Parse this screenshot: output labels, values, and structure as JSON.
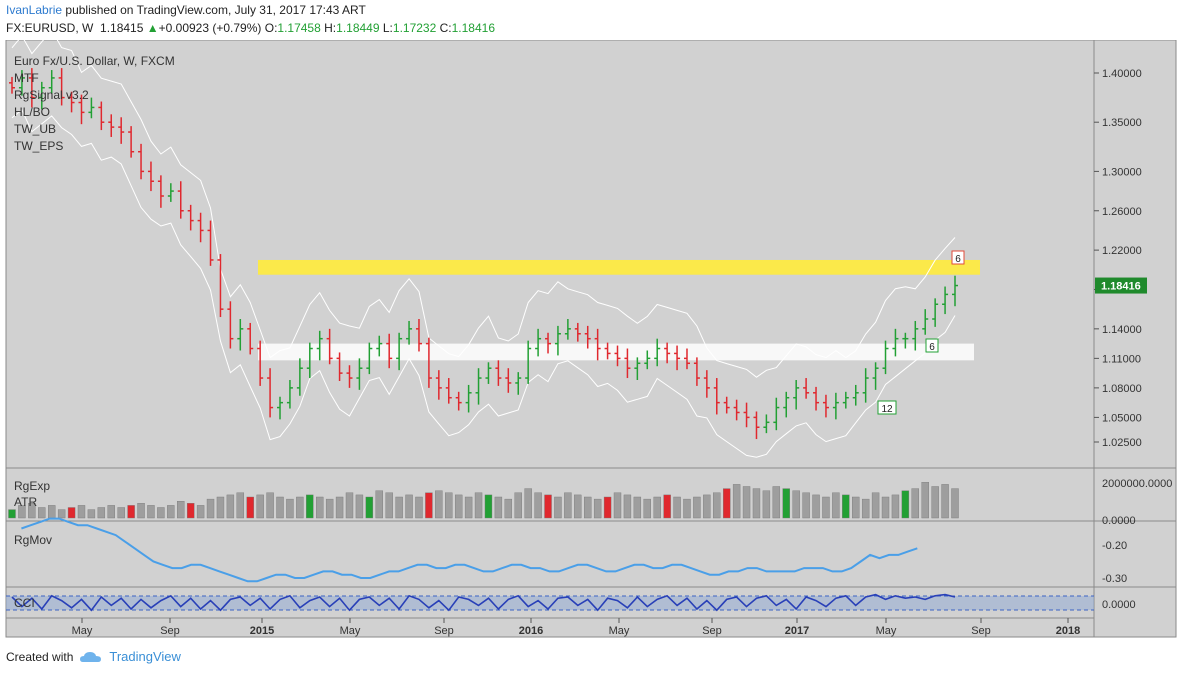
{
  "header": {
    "author": "IvanLabrie",
    "published_text": "published on TradingView.com, July 31, 2017 17:43 ART",
    "symbol": "FX:EURUSD, W",
    "price": "1.18415",
    "change": "+0.00923 (+0.79%)",
    "o_label": "O:",
    "o_value": "1.17458",
    "h_label": "H:",
    "h_value": "1.18449",
    "l_label": "L:",
    "l_value": "1.17232",
    "c_label": "C:",
    "c_value": "1.18416"
  },
  "footer": {
    "created_with": "Created with",
    "brand": "TradingView"
  },
  "chart_data": {
    "type": "candlestick",
    "title": "Euro Fx/U.S. Dollar, W, FXCM",
    "indicators": [
      "MTF",
      "RgSignal v3.2",
      "HL/BO",
      "TW_UB",
      "TW_EPS"
    ],
    "last_price_label": "1.18416",
    "y_ticks": [
      "1.40000",
      "1.35000",
      "1.30000",
      "1.26000",
      "1.22000",
      "1.18000",
      "1.14000",
      "1.11000",
      "1.08000",
      "1.05000",
      "1.02500"
    ],
    "x_ticks": [
      "May",
      "Sep",
      "2015",
      "May",
      "Sep",
      "2016",
      "May",
      "Sep",
      "2017",
      "May",
      "Sep",
      "2018"
    ],
    "price_path": [
      1.385,
      1.395,
      1.375,
      1.385,
      1.395,
      1.375,
      1.37,
      1.36,
      1.365,
      1.35,
      1.345,
      1.34,
      1.32,
      1.3,
      1.29,
      1.275,
      1.28,
      1.26,
      1.25,
      1.24,
      1.21,
      1.16,
      1.13,
      1.14,
      1.12,
      1.09,
      1.06,
      1.065,
      1.08,
      1.1,
      1.12,
      1.13,
      1.11,
      1.095,
      1.09,
      1.1,
      1.12,
      1.125,
      1.11,
      1.13,
      1.14,
      1.125,
      1.09,
      1.08,
      1.07,
      1.065,
      1.075,
      1.09,
      1.1,
      1.09,
      1.085,
      1.09,
      1.12,
      1.13,
      1.125,
      1.135,
      1.14,
      1.135,
      1.13,
      1.12,
      1.115,
      1.11,
      1.1,
      1.105,
      1.11,
      1.12,
      1.115,
      1.11,
      1.105,
      1.09,
      1.08,
      1.065,
      1.06,
      1.055,
      1.05,
      1.04,
      1.045,
      1.06,
      1.07,
      1.08,
      1.075,
      1.065,
      1.06,
      1.065,
      1.07,
      1.075,
      1.09,
      1.1,
      1.12,
      1.13,
      1.13,
      1.14,
      1.15,
      1.165,
      1.175,
      1.184
    ],
    "annotations": [
      "6",
      "6",
      "12"
    ],
    "zones": [
      {
        "name": "resistance",
        "from": 1.195,
        "to": 1.21,
        "color": "#ffeb3b"
      },
      {
        "name": "support",
        "from": 1.108,
        "to": 1.125,
        "color": "#ffffff"
      }
    ],
    "panels": [
      {
        "name": "RgExp",
        "sublabel": "ATR",
        "ticks": [
          "2000000.0000",
          "0.0000"
        ],
        "volumes": [
          0.2,
          0.3,
          0.35,
          0.25,
          0.3,
          0.2,
          0.25,
          0.3,
          0.2,
          0.25,
          0.3,
          0.25,
          0.3,
          0.35,
          0.3,
          0.25,
          0.3,
          0.4,
          0.35,
          0.3,
          0.45,
          0.5,
          0.55,
          0.6,
          0.5,
          0.55,
          0.6,
          0.5,
          0.45,
          0.5,
          0.55,
          0.5,
          0.45,
          0.5,
          0.6,
          0.55,
          0.5,
          0.65,
          0.6,
          0.5,
          0.55,
          0.5,
          0.6,
          0.65,
          0.6,
          0.55,
          0.5,
          0.6,
          0.55,
          0.5,
          0.45,
          0.6,
          0.7,
          0.6,
          0.55,
          0.5,
          0.6,
          0.55,
          0.5,
          0.45,
          0.5,
          0.6,
          0.55,
          0.5,
          0.45,
          0.5,
          0.55,
          0.5,
          0.45,
          0.5,
          0.55,
          0.6,
          0.7,
          0.8,
          0.75,
          0.7,
          0.65,
          0.75,
          0.7,
          0.65,
          0.6,
          0.55,
          0.5,
          0.6,
          0.55,
          0.5,
          0.45,
          0.6,
          0.5,
          0.55,
          0.65,
          0.7,
          0.85,
          0.75,
          0.8,
          0.7
        ]
      },
      {
        "name": "RgMov",
        "ticks": [
          "-0.20",
          "-0.30"
        ],
        "line": [
          -0.15,
          -0.14,
          -0.13,
          -0.12,
          -0.12,
          -0.13,
          -0.14,
          -0.14,
          -0.15,
          -0.16,
          -0.17,
          -0.19,
          -0.21,
          -0.23,
          -0.25,
          -0.26,
          -0.27,
          -0.27,
          -0.26,
          -0.26,
          -0.27,
          -0.28,
          -0.29,
          -0.3,
          -0.31,
          -0.31,
          -0.3,
          -0.29,
          -0.29,
          -0.3,
          -0.3,
          -0.29,
          -0.28,
          -0.28,
          -0.29,
          -0.29,
          -0.3,
          -0.3,
          -0.29,
          -0.28,
          -0.28,
          -0.27,
          -0.26,
          -0.26,
          -0.27,
          -0.27,
          -0.26,
          -0.26,
          -0.27,
          -0.28,
          -0.28,
          -0.27,
          -0.26,
          -0.26,
          -0.27,
          -0.27,
          -0.28,
          -0.28,
          -0.27,
          -0.26,
          -0.26,
          -0.27,
          -0.28,
          -0.28,
          -0.27,
          -0.26,
          -0.26,
          -0.27,
          -0.27,
          -0.26,
          -0.26,
          -0.27,
          -0.28,
          -0.29,
          -0.29,
          -0.28,
          -0.28,
          -0.27,
          -0.27,
          -0.28,
          -0.28,
          -0.28,
          -0.28,
          -0.27,
          -0.27,
          -0.27,
          -0.28,
          -0.28,
          -0.27,
          -0.25,
          -0.23,
          -0.24,
          -0.23,
          -0.23,
          -0.22,
          -0.21
        ]
      },
      {
        "name": "CCI",
        "ticks": [
          "0.0000"
        ],
        "line": [
          0.5,
          -0.3,
          0.4,
          -0.5,
          0.6,
          0.2,
          -0.4,
          0.3,
          -0.6,
          0.5,
          -0.2,
          0.4,
          -0.5,
          0.3,
          -0.4,
          0.2,
          0.6,
          -0.3,
          0.4,
          -0.5,
          0.2,
          -0.6,
          0.3,
          0.5,
          -0.2,
          0.4,
          -0.5,
          0.3,
          0.6,
          -0.4,
          0.2,
          0.5,
          -0.3,
          0.4,
          -0.6,
          0.3,
          0.5,
          -0.2,
          0.4,
          -0.5,
          0.6,
          0.3,
          -0.4,
          0.2,
          -0.6,
          0.5,
          0.3,
          -0.2,
          0.4,
          -0.5,
          0.3,
          0.6,
          -0.3,
          0.2,
          -0.5,
          0.4,
          0.5,
          -0.2,
          0.3,
          -0.6,
          0.4,
          0.2,
          -0.4,
          0.5,
          -0.3,
          0.3,
          0.6,
          -0.2,
          0.4,
          -0.5,
          0.2,
          -0.6,
          0.3,
          0.5,
          -0.3,
          0.4,
          0.6,
          -0.2,
          0.3,
          -0.5,
          0.5,
          0.2,
          -0.3,
          0.4,
          0.6,
          -0.2,
          0.5,
          0.7,
          0.3,
          0.6,
          0.4,
          0.5,
          0.3,
          0.6,
          0.7,
          0.5
        ]
      }
    ],
    "colors": {
      "bg": "#d1d1d1",
      "up": "#22a034",
      "down": "#e0282e",
      "line": "#4a9fe8",
      "cci": "#2940b8"
    }
  }
}
